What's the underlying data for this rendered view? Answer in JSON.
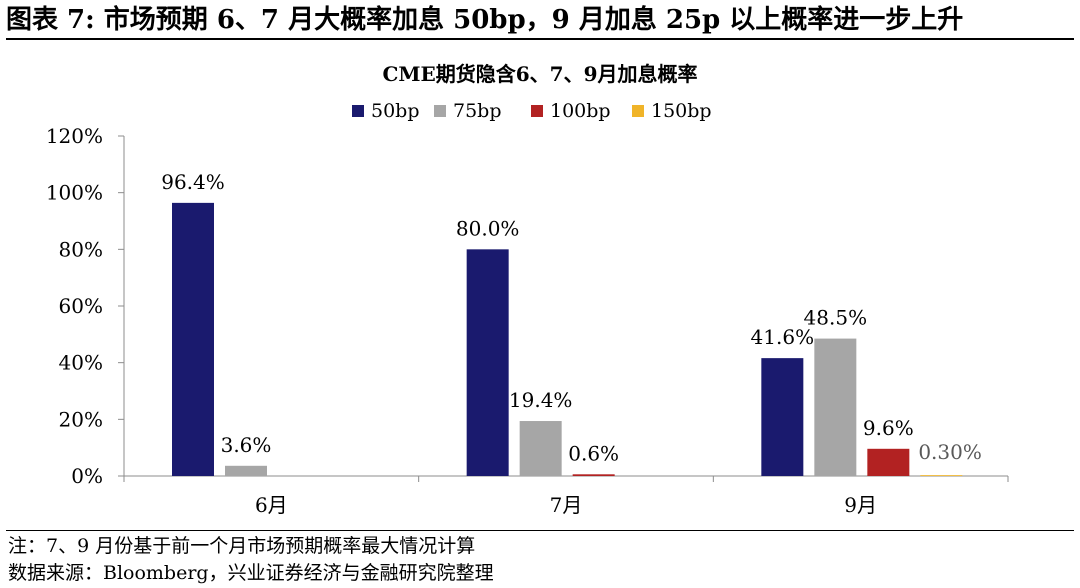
{
  "figure": {
    "title": "图表 7:  市场预期 6、7 月大概率加息 50bp，9 月加息 25p 以上概率进一步上升",
    "note": "注：7、9 月份基于前一个月市场预期概率最大情况计算",
    "source": "数据来源：Bloomberg，兴业证券经济与金融研究院整理"
  },
  "chart_data": {
    "type": "bar",
    "title": "CME期货隐含6、7、9月加息概率",
    "xlabel": "",
    "ylabel": "",
    "categories": [
      "6月",
      "7月",
      "9月"
    ],
    "ylim": [
      0,
      120
    ],
    "yticks": [
      "0%",
      "20%",
      "40%",
      "60%",
      "80%",
      "100%",
      "120%"
    ],
    "ytick_values": [
      0,
      20,
      40,
      60,
      80,
      100,
      120
    ],
    "legend_position": "top-center",
    "grid": false,
    "series": [
      {
        "name": "50bp",
        "color": "#1a1a6e",
        "values": [
          96.4,
          80.0,
          41.6
        ],
        "labels": [
          "96.4%",
          "80.0%",
          "41.6%"
        ]
      },
      {
        "name": "75bp",
        "color": "#a6a6a6",
        "values": [
          3.6,
          19.4,
          48.5
        ],
        "labels": [
          "3.6%",
          "19.4%",
          "48.5%"
        ]
      },
      {
        "name": "100bp",
        "color": "#b22222",
        "values": [
          0,
          0.6,
          9.6
        ],
        "labels": [
          "",
          "0.6%",
          "9.6%"
        ]
      },
      {
        "name": "150bp",
        "color": "#f0b429",
        "values": [
          0,
          0,
          0.3
        ],
        "labels": [
          "",
          "",
          "0.30%"
        ]
      }
    ]
  }
}
